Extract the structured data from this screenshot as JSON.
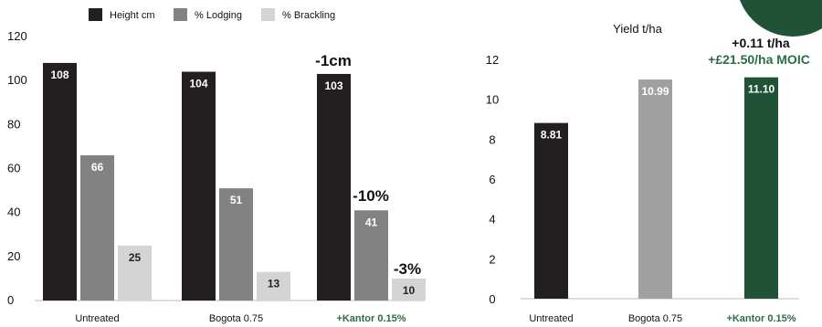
{
  "chart_data": [
    {
      "type": "bar",
      "categories": [
        "Untreated",
        "Bogota 0.75",
        "+Kantor 0.15%"
      ],
      "series": [
        {
          "name": "Height cm",
          "color": "#231f20",
          "values": [
            108,
            104,
            103
          ]
        },
        {
          "name": "% Lodging",
          "color": "#828282",
          "values": [
            66,
            51,
            41
          ]
        },
        {
          "name": "% Brackling",
          "color": "#d4d4d4",
          "values": [
            25,
            13,
            10
          ]
        }
      ],
      "ylim": [
        0,
        120
      ],
      "yticks": [
        0,
        20,
        40,
        60,
        80,
        100,
        120
      ],
      "legend": "top",
      "grid": false,
      "highlight_category_color": "#2d6b45",
      "annotations": [
        "-1cm",
        "-10%",
        "-3%"
      ]
    },
    {
      "type": "bar",
      "title": "Yield t/ha",
      "categories": [
        "Untreated",
        "Bogota 0.75",
        "+Kantor 0.15%"
      ],
      "values": [
        8.81,
        10.99,
        11.1
      ],
      "value_labels": [
        "8.81",
        "10.99",
        "11.10"
      ],
      "colors": [
        "#231f20",
        "#a0a0a0",
        "#1f5236"
      ],
      "ylim": [
        0,
        12
      ],
      "yticks": [
        0,
        2,
        4,
        6,
        8,
        10,
        12
      ],
      "grid": false,
      "highlight_category_color": "#2d6b45",
      "annotations": [
        "+0.11 t/ha",
        "+£21.50/ha MOIC"
      ],
      "annotation_colors": [
        "#111111",
        "#2d6b45"
      ]
    }
  ]
}
